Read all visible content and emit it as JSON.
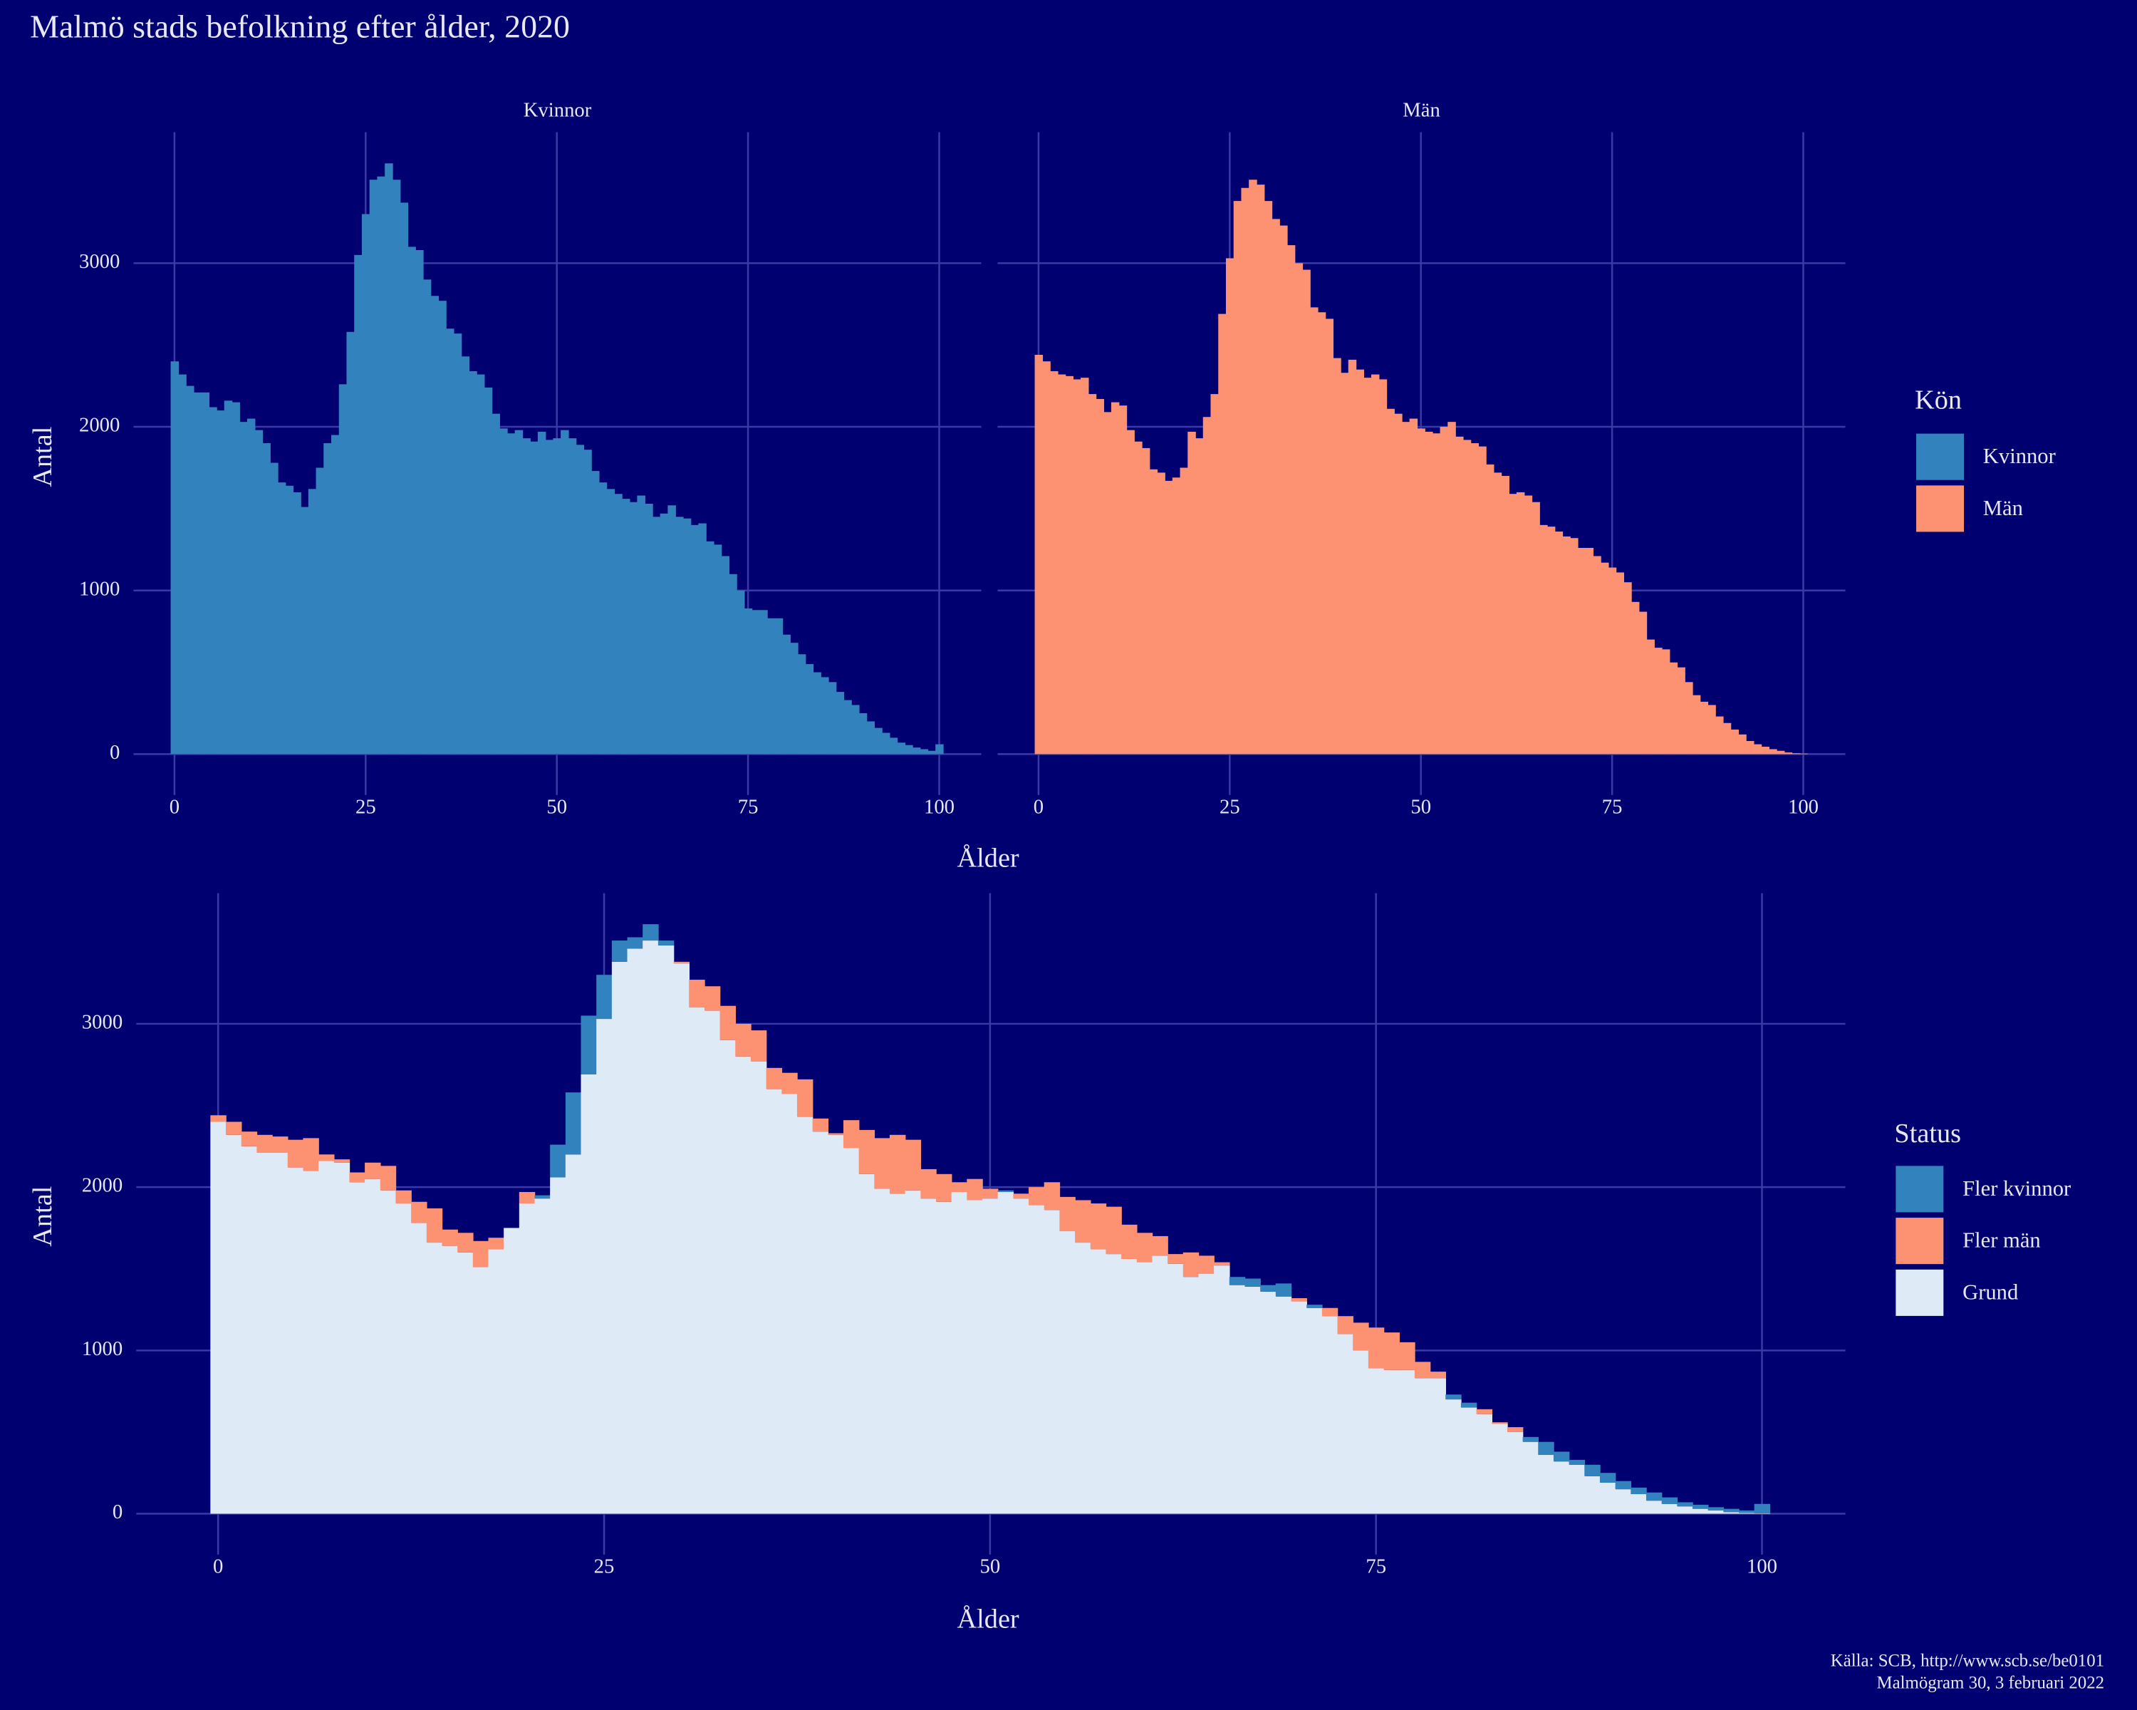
{
  "chart_data": {
    "type": "faceted_bar",
    "title": "Malmö stads befolkning efter ålder, 2020",
    "caption": [
      "Källa: SCB, http://www.scb.se/be0101",
      "Malmögram 30, 3 februari 2022"
    ],
    "x_label": "Ålder",
    "y_label": "Antal",
    "legend_title": "Kön",
    "x": [
      0,
      1,
      2,
      3,
      4,
      5,
      6,
      7,
      8,
      9,
      10,
      11,
      12,
      13,
      14,
      15,
      16,
      17,
      18,
      19,
      20,
      21,
      22,
      23,
      24,
      25,
      26,
      27,
      28,
      29,
      30,
      31,
      32,
      33,
      34,
      35,
      36,
      37,
      38,
      39,
      40,
      41,
      42,
      43,
      44,
      45,
      46,
      47,
      48,
      49,
      50,
      51,
      52,
      53,
      54,
      55,
      56,
      57,
      58,
      59,
      60,
      61,
      62,
      63,
      64,
      65,
      66,
      67,
      68,
      69,
      70,
      71,
      72,
      73,
      74,
      75,
      76,
      77,
      78,
      79,
      80,
      81,
      82,
      83,
      84,
      85,
      86,
      87,
      88,
      89,
      90,
      91,
      92,
      93,
      94,
      95,
      96,
      97,
      98,
      99,
      100
    ],
    "series": [
      {
        "name": "Kvinnor",
        "color": "#3182bd",
        "values": [
          2400,
          2320,
          2250,
          2210,
          2210,
          2120,
          2100,
          2160,
          2150,
          2030,
          2050,
          1980,
          1900,
          1780,
          1660,
          1640,
          1600,
          1510,
          1620,
          1750,
          1900,
          1950,
          2260,
          2580,
          3050,
          3300,
          3510,
          3530,
          3610,
          3510,
          3370,
          3100,
          3080,
          2900,
          2800,
          2770,
          2600,
          2570,
          2430,
          2340,
          2320,
          2240,
          2080,
          1990,
          1960,
          1980,
          1930,
          1910,
          1970,
          1920,
          1930,
          1980,
          1930,
          1890,
          1860,
          1730,
          1660,
          1620,
          1590,
          1560,
          1540,
          1580,
          1530,
          1450,
          1470,
          1520,
          1450,
          1440,
          1400,
          1410,
          1300,
          1280,
          1210,
          1100,
          1000,
          890,
          880,
          880,
          830,
          830,
          730,
          680,
          610,
          550,
          500,
          470,
          440,
          380,
          330,
          300,
          250,
          200,
          160,
          130,
          100,
          70,
          55,
          40,
          30,
          20,
          60
        ]
      },
      {
        "name": "Män",
        "color": "#fc9272",
        "values": [
          2440,
          2400,
          2340,
          2320,
          2310,
          2290,
          2300,
          2200,
          2170,
          2090,
          2150,
          2130,
          1980,
          1910,
          1870,
          1740,
          1720,
          1670,
          1690,
          1750,
          1970,
          1930,
          2060,
          2200,
          2690,
          3030,
          3380,
          3460,
          3510,
          3480,
          3380,
          3270,
          3230,
          3110,
          3000,
          2960,
          2730,
          2700,
          2660,
          2420,
          2330,
          2410,
          2350,
          2300,
          2320,
          2290,
          2110,
          2080,
          2030,
          2050,
          1990,
          1970,
          1960,
          2000,
          2030,
          1940,
          1920,
          1900,
          1880,
          1770,
          1720,
          1700,
          1590,
          1600,
          1580,
          1540,
          1400,
          1390,
          1360,
          1330,
          1320,
          1260,
          1260,
          1210,
          1170,
          1140,
          1110,
          1050,
          930,
          870,
          700,
          650,
          640,
          560,
          530,
          440,
          360,
          320,
          300,
          230,
          190,
          150,
          120,
          80,
          60,
          45,
          30,
          20,
          10,
          5,
          3
        ]
      }
    ],
    "xlim": [
      -5.35,
      105.5
    ],
    "xticks": [
      0,
      25,
      50,
      75,
      100
    ],
    "ylim": [
      -250,
      3800
    ],
    "yticks": [
      0,
      1000,
      2000,
      3000
    ],
    "grid": true,
    "comparison": {
      "type": "difference_stack",
      "legend_title": "Status",
      "status": [
        {
          "name": "Fler kvinnor",
          "color": "#3182bd"
        },
        {
          "name": "Fler män",
          "color": "#fc9272"
        },
        {
          "name": "Grund",
          "color": "#deebf7"
        }
      ],
      "xlim": [
        -5.3,
        105.4
      ],
      "xticks": [
        0,
        25,
        50,
        75,
        100
      ],
      "ylim": [
        -250,
        3800
      ],
      "yticks": [
        0,
        1000,
        2000,
        3000
      ]
    }
  }
}
